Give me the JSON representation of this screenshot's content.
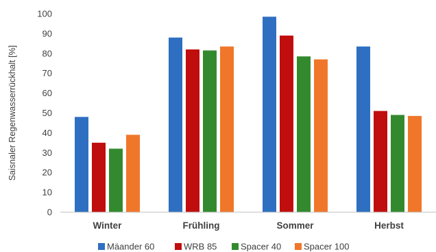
{
  "chart_data": {
    "type": "bar",
    "ylabel": "Saisnaler Regenwasserrückhalt [%]",
    "xlabel": "",
    "ylim": [
      0,
      100
    ],
    "y_ticks": [
      0,
      10,
      20,
      30,
      40,
      50,
      60,
      70,
      80,
      90,
      100
    ],
    "grid": false,
    "legend_position": "bottom",
    "categories": [
      "Winter",
      "Frühling",
      "Sommer",
      "Herbst"
    ],
    "series": [
      {
        "name": "Mäander 60",
        "color": "#2f6fc2",
        "values": [
          48,
          88,
          98.5,
          83.5
        ]
      },
      {
        "name": "WRB 85",
        "color": "#c00d0d",
        "values": [
          35,
          82,
          89,
          51
        ]
      },
      {
        "name": "Spacer 40",
        "color": "#338a2e",
        "values": [
          32,
          81.5,
          78.5,
          49
        ]
      },
      {
        "name": "Spacer 100",
        "color": "#f0772a",
        "values": [
          39,
          83.5,
          77,
          48.5
        ]
      }
    ]
  }
}
